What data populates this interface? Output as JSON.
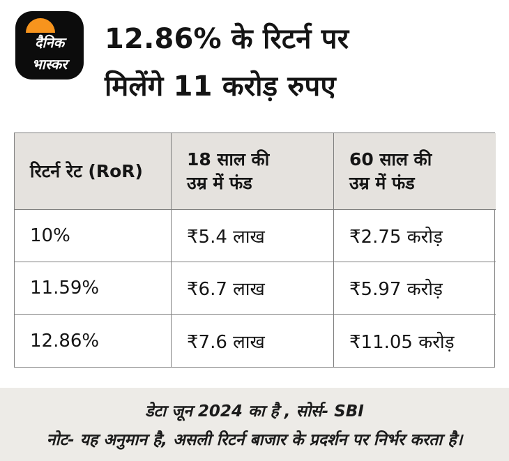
{
  "brand_logo": {
    "line1": "दैनिक",
    "line2": "भास्कर"
  },
  "header": {
    "title_line1": "12.86% के रिटर्न पर",
    "title_line2": "मिलेंगे 11 करोड़ रुपए"
  },
  "chart_data": {
    "type": "table",
    "title": "12.86% के रिटर्न पर मिलेंगे 11 करोड़ रुपए",
    "columns": [
      "रिटर्न रेट (RoR)",
      "18 साल की\nउम्र में फंड",
      "60 साल की\nउम्र में फंड"
    ],
    "rows": [
      [
        "10%",
        "₹5.4 लाख",
        "₹2.75 करोड़"
      ],
      [
        "11.59%",
        "₹6.7 लाख",
        "₹5.97 करोड़"
      ],
      [
        "12.86%",
        "₹7.6 लाख",
        "₹11.05 करोड़"
      ]
    ]
  },
  "footer": {
    "line1": "डेटा जून 2024 का है , सोर्स- SBI",
    "line2": "नोट- यह अनुमान है, असली रिटर्न बाजार के प्रदर्शन पर निर्भर करता है।"
  },
  "colors": {
    "accent_orange": "#f7941d",
    "table_header_bg": "#e5e2de",
    "footer_bg": "#edebe7",
    "border": "#7e7e7e",
    "text": "#111111"
  }
}
